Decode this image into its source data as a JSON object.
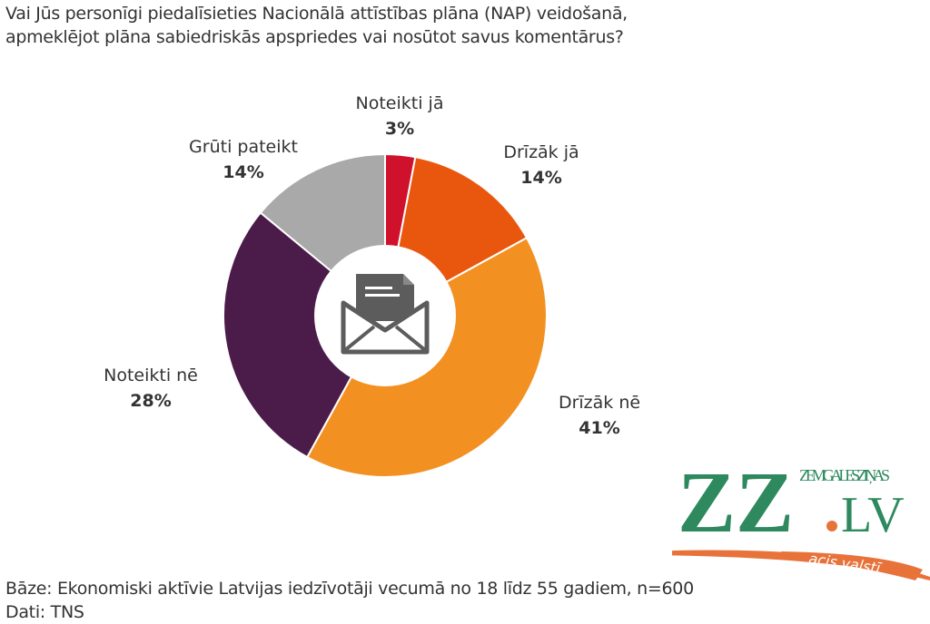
{
  "title_lines": [
    "Vai Jūs personīgi piedalīsieties Nacionālā attīstības plāna (NAP) veidošanā,",
    "apmeklējot plāna sabiedriskās apspriedes vai nosūtot savus komentārus?"
  ],
  "chart_data": {
    "type": "pie",
    "donut": true,
    "title": "Vai Jūs personīgi piedalīsieties Nacionālā attīstības plāna (NAP) veidošanā, apmeklējot plāna sabiedriskās apspriedes vai nosūtot savus komentārus?",
    "categories": [
      "Noteikti jā",
      "Drīzāk jā",
      "Drīzāk nē",
      "Noteikti nē",
      "Grūti pateikt"
    ],
    "values": [
      3,
      14,
      41,
      28,
      14
    ],
    "labels": [
      "3%",
      "14%",
      "41%",
      "28%",
      "14%"
    ],
    "colors": [
      "#d0112b",
      "#e9570f",
      "#f29122",
      "#4b1b4a",
      "#a9a9a9"
    ],
    "center_icon": "envelope-icon"
  },
  "footer": {
    "base": "Bāze: Ekonomiski aktīvie Latvijas iedzīvotāji vecumā no 18 līdz 55 gadiem, n=600",
    "source": "Dati: TNS"
  },
  "logo": {
    "main": "ZZ",
    "dot": ".",
    "lv": "LV",
    "small": "ZEMGALES ZIŅAS",
    "slogan": "acis valstī",
    "color": "#2e8a5e",
    "accent": "#e8733a"
  }
}
